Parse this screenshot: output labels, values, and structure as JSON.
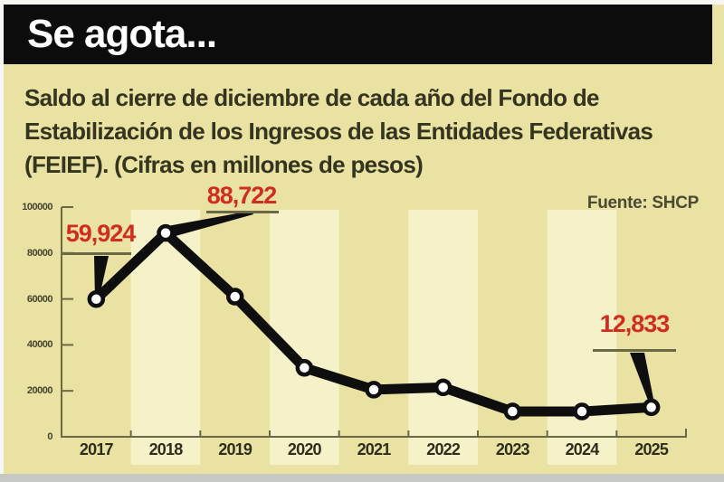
{
  "header": {
    "title": "Se agota..."
  },
  "subtitle": "Saldo al cierre de diciembre de cada año del Fondo de\nEstabilización de los Ingresos de las Entidades Federativas\n(FEIEF). (Cifras en millones de pesos)",
  "source": "Fuente: SHCP",
  "colors": {
    "background": "#e9e2a2",
    "stripe": "#f5f1c8",
    "header_bg": "#0c0c0c",
    "header_text": "#ffffff",
    "text": "#35341f",
    "axis": "#6b6847",
    "accent_red": "#d02c20",
    "line": "#0e0e0e",
    "marker_fill": "#ffffff",
    "bottom_strip": "#c5c8c3"
  },
  "chart_data": {
    "type": "line",
    "title": "Se agota...",
    "subtitle": "Saldo al cierre de diciembre de cada año del FEIEF",
    "units": "millones de pesos",
    "source": "SHCP",
    "categories": [
      "2017",
      "2018",
      "2019",
      "2020",
      "2021",
      "2022",
      "2023",
      "2024",
      "2025"
    ],
    "values": [
      59924,
      88722,
      61000,
      30000,
      20500,
      21500,
      11000,
      11000,
      12833
    ],
    "labeled_points": [
      {
        "category": "2017",
        "label": "59,924"
      },
      {
        "category": "2018",
        "label": "88,722"
      },
      {
        "category": "2025",
        "label": "12,833"
      }
    ],
    "xlabel": "",
    "ylabel": "",
    "ylim": [
      0,
      100000
    ],
    "yticks": [
      0,
      20000,
      40000,
      60000,
      80000,
      100000
    ],
    "grid": false,
    "legend_position": "none"
  }
}
